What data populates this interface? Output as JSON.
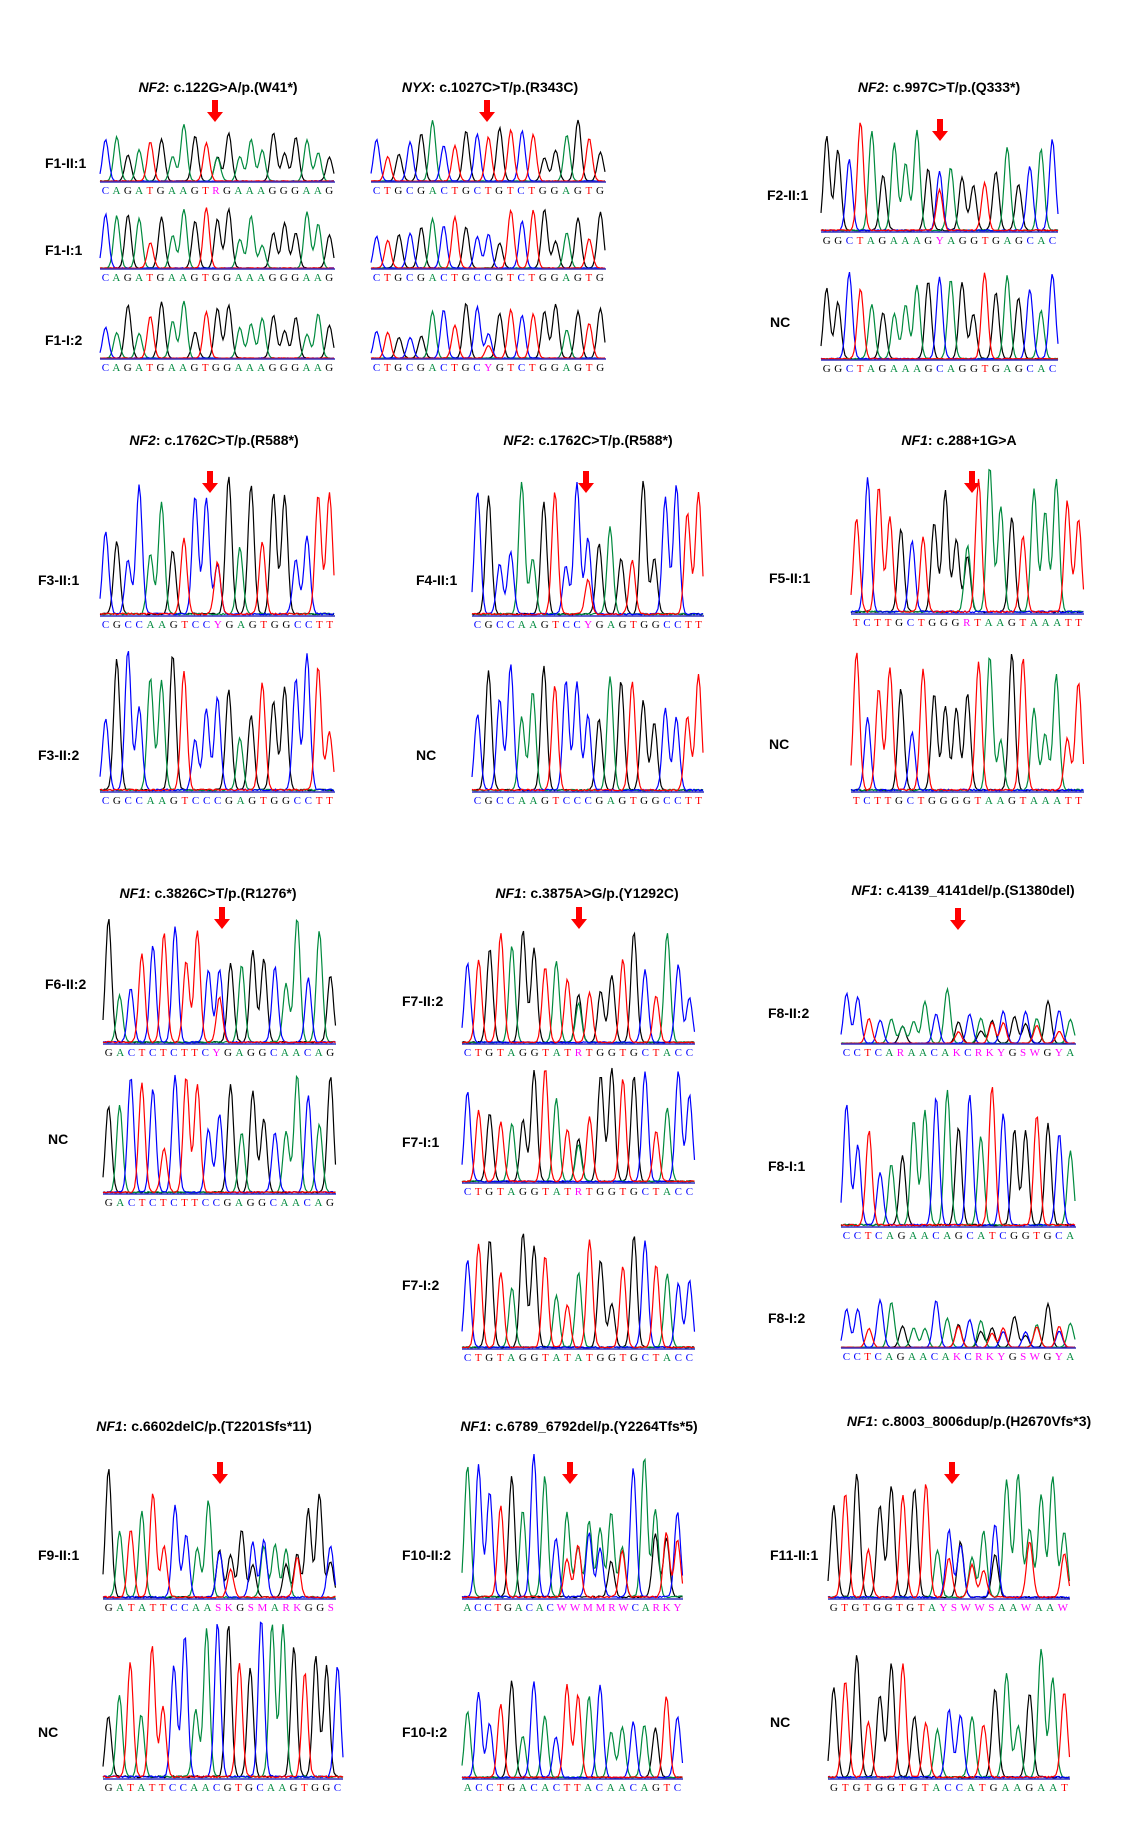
{
  "colors": {
    "A": "#008a3e",
    "C": "#0000ff",
    "G": "#000000",
    "T": "#ff0000",
    "ambiguous": "#ff00ff",
    "arrow": "#ff0000"
  },
  "panels": [
    {
      "gene": "NF2",
      "change": ": c.122G>A/p.(W41*)",
      "samples": [
        {
          "label": "F1-II:1",
          "sequence": "CAGATGAAGTRGAAAGGGAAG"
        },
        {
          "label": "F1-I:1",
          "sequence": "CAGATGAAGTGGAAAGGGAAG"
        },
        {
          "label": "F1-I:2",
          "sequence": "CAGATGAAGTGGAAAGGGAAG"
        }
      ]
    },
    {
      "gene": "NYX",
      "change": ": c.1027C>T/p.(R343C)",
      "samples": [
        {
          "sequence": "CTGCGACTGCTGTCTGGAGTG"
        },
        {
          "sequence": "CTGCGACTGCCGTCTGGAGTG"
        },
        {
          "sequence": "CTGCGACTGCYGTCTGGAGTG"
        }
      ]
    },
    {
      "gene": "NF2",
      "change": ": c.997C>T/p.(Q333*)",
      "samples": [
        {
          "label": "F2-II:1",
          "sequence": "GGCTAGAAAGYAGGTGAGCAC"
        },
        {
          "label": "NC",
          "sequence": "GGCTAGAAAGCAGGTGAGCAC"
        }
      ]
    },
    {
      "gene": "NF2",
      "change": ": c.1762C>T/p.(R588*)",
      "samples": [
        {
          "label": "F3-II:1",
          "sequence": "CGCCAAGTCCYGAGTGGCCTT"
        },
        {
          "label": "F3-II:2",
          "sequence": "CGCCAAGTCCCGAGTGGCCTT"
        }
      ]
    },
    {
      "gene": "NF2",
      "change": ": c.1762C>T/p.(R588*)",
      "samples": [
        {
          "label": "F4-II:1",
          "sequence": "CGCCAAGTCCYGAGTGGCCTT"
        },
        {
          "label": "NC",
          "sequence": "CGCCAAGTCCCGAGTGGCCTT"
        }
      ]
    },
    {
      "gene": "NF1",
      "change": ": c.288+1G>A",
      "samples": [
        {
          "label": "F5-II:1",
          "sequence": "TCTTGCTGGGRTAAGTAAATT"
        },
        {
          "label": "NC",
          "sequence": "TCTTGCTGGGGTAAGTAAATT"
        }
      ]
    },
    {
      "gene": "NF1",
      "change": ": c.3826C>T/p.(R1276*)",
      "samples": [
        {
          "label": "F6-II:2",
          "sequence": "GACTCTCTTCYGAGGCAACAG"
        },
        {
          "label": "NC",
          "sequence": "GACTCTCTTCCGAGGCAACAG"
        }
      ]
    },
    {
      "gene": "NF1",
      "change": ": c.3875A>G/p.(Y1292C)",
      "samples": [
        {
          "label": "F7-II:2",
          "sequence": "CTGTAGGTATRTGGTGCTACC"
        },
        {
          "label": "F7-I:1",
          "sequence": "CTGTAGGTATRTGGTGCTACC"
        },
        {
          "label": "F7-I:2",
          "sequence": "CTGTAGGTATATGGTGCTACC"
        }
      ]
    },
    {
      "gene": "NF1",
      "change": ": c.4139_4141del/p.(S1380del)",
      "samples": [
        {
          "label": "F8-II:2",
          "sequence": "CCTCARAACAKCRKYGSWGYA"
        },
        {
          "label": "F8-I:1",
          "sequence": "CCTCAGAACAGCATCGGTGCA"
        },
        {
          "label": "F8-I:2",
          "sequence": "CCTCAGAACAKCRKYGSWGYA"
        }
      ]
    },
    {
      "gene": "NF1",
      "change": ": c.6602delC/p.(T2201Sfs*11)",
      "samples": [
        {
          "label": "F9-II:1",
          "sequence": "GATATTCCAASKGSMARKGGS"
        },
        {
          "label": "NC",
          "sequence": "GATATTCCAACGTGCAAGTGGC"
        }
      ]
    },
    {
      "gene": "NF1",
      "change": ": c.6789_6792del/p.(Y2264Tfs*5)",
      "samples": [
        {
          "label": "F10-II:2",
          "sequence": "ACCTGACACWWMMRWCARKY"
        },
        {
          "label": "F10-I:2",
          "sequence": "ACCTGACACTTACAACAGTC"
        }
      ]
    },
    {
      "gene": "NF1",
      "change": ": c.8003_8006dup/p.(H2670Vfs*3)",
      "samples": [
        {
          "label": "F11-II:1",
          "sequence": "GTGTGGTGTAYSWWSAAWAAW"
        },
        {
          "label": "NC",
          "sequence": "GTGTGGTGTACCATGAAGAAT"
        }
      ]
    }
  ]
}
